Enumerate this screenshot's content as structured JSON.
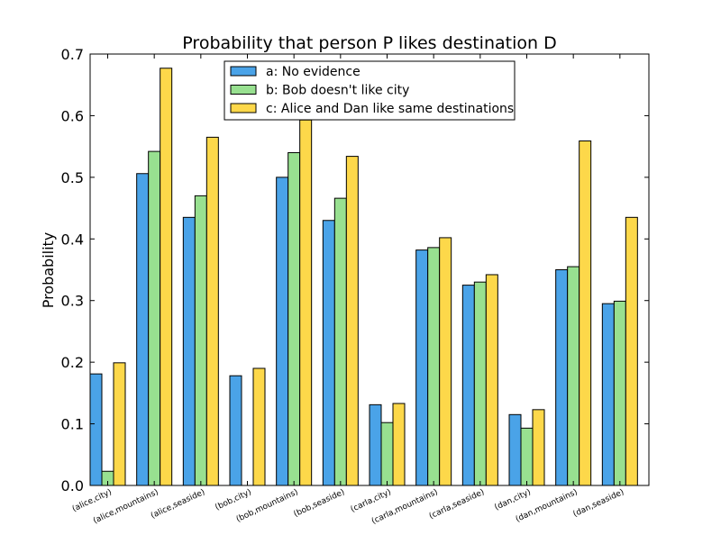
{
  "chart_data": {
    "type": "bar",
    "title": "Probability that person P likes destination D",
    "xlabel": "",
    "ylabel": "Probability",
    "ylim": [
      0,
      0.7
    ],
    "yticks": [
      "0.0",
      "0.1",
      "0.2",
      "0.3",
      "0.4",
      "0.5",
      "0.6",
      "0.7"
    ],
    "categories": [
      "(alice,city)",
      "(alice,mountains)",
      "(alice,seaside)",
      "(bob,city)",
      "(bob,mountains)",
      "(bob,seaside)",
      "(carla,city)",
      "(carla,mountains)",
      "(carla,seaside)",
      "(dan,city)",
      "(dan,mountains)",
      "(dan,seaside)"
    ],
    "series": [
      {
        "name": "a: No evidence",
        "color": "#4aa3e8",
        "values": [
          0.181,
          0.506,
          0.435,
          0.178,
          0.5,
          0.43,
          0.131,
          0.382,
          0.325,
          0.115,
          0.35,
          0.295
        ]
      },
      {
        "name": "b: Bob doesn't like city",
        "color": "#98e090",
        "values": [
          0.023,
          0.542,
          0.47,
          0.0,
          0.54,
          0.466,
          0.102,
          0.386,
          0.33,
          0.093,
          0.355,
          0.299
        ]
      },
      {
        "name": "c: Alice and Dan like same destinations",
        "color": "#fdd84a",
        "values": [
          0.199,
          0.677,
          0.565,
          0.19,
          0.593,
          0.534,
          0.133,
          0.402,
          0.342,
          0.123,
          0.559,
          0.435
        ]
      }
    ],
    "legend_position": "top-center",
    "grid": false
  }
}
